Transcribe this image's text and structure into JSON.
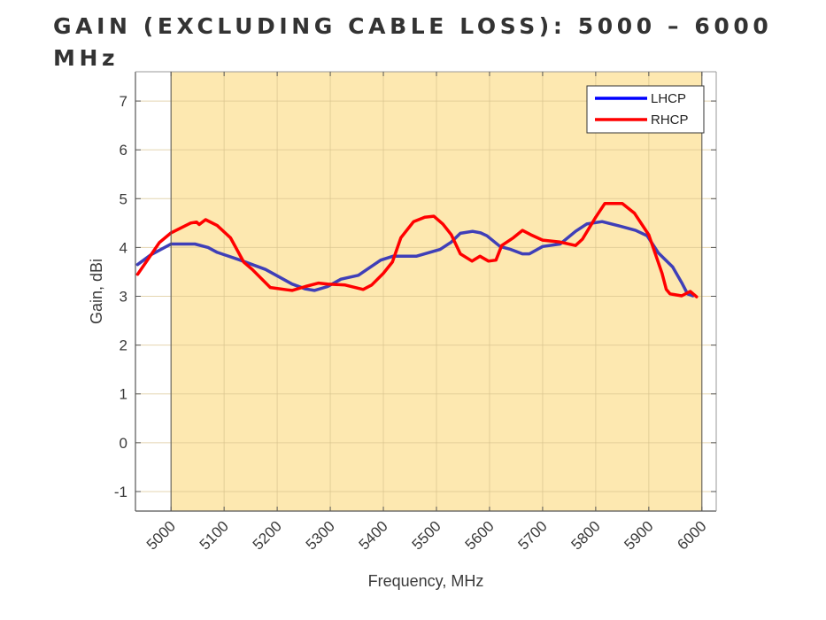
{
  "page": {
    "title": "GAIN (EXCLUDING CABLE LOSS): 5000 – 6000 MHz"
  },
  "chart_data": {
    "type": "line",
    "title": "GAIN (EXCLUDING CABLE LOSS): 5000 – 6000 MHz",
    "xlabel": "Frequency, MHz",
    "ylabel": "Gain, dBi",
    "xlim": [
      4933,
      6027
    ],
    "ylim": [
      -1.4,
      7.6
    ],
    "xticks": [
      5000,
      5100,
      5200,
      5300,
      5400,
      5500,
      5600,
      5700,
      5800,
      5900,
      6000
    ],
    "xtick_labels": [
      "5000",
      "5100",
      "5200",
      "5300",
      "5400",
      "5500",
      "5600",
      "5700",
      "5800",
      "5900",
      "6000"
    ],
    "yticks": [
      -1,
      0,
      1,
      2,
      3,
      4,
      5,
      6,
      7
    ],
    "ytick_labels": [
      "-1",
      "0",
      "1",
      "2",
      "3",
      "4",
      "5",
      "6",
      "7"
    ],
    "grid": true,
    "highlight_band": {
      "from": 5000,
      "to": 6000,
      "color": "#fde8b0"
    },
    "legend": {
      "position": "top-right",
      "entries": [
        "LHCP",
        "RHCP"
      ]
    },
    "series": [
      {
        "name": "LHCP",
        "color": "#3f3fb8",
        "legend_color": "#0000ff",
        "x": [
          4937,
          4962,
          5000,
          5045,
          5070,
          5087,
          5128,
          5178,
          5228,
          5253,
          5270,
          5295,
          5320,
          5353,
          5395,
          5418,
          5462,
          5507,
          5528,
          5545,
          5568,
          5583,
          5595,
          5620,
          5640,
          5662,
          5675,
          5700,
          5733,
          5762,
          5783,
          5812,
          5845,
          5875,
          5897,
          5918,
          5945,
          5962,
          5973,
          5983
        ],
        "y": [
          3.65,
          3.85,
          4.07,
          4.07,
          4.0,
          3.9,
          3.75,
          3.55,
          3.25,
          3.15,
          3.12,
          3.2,
          3.35,
          3.43,
          3.74,
          3.82,
          3.82,
          3.96,
          4.11,
          4.29,
          4.33,
          4.3,
          4.24,
          4.02,
          3.96,
          3.87,
          3.87,
          4.02,
          4.07,
          4.33,
          4.48,
          4.53,
          4.44,
          4.35,
          4.24,
          3.89,
          3.6,
          3.28,
          3.05,
          3.01
        ]
      },
      {
        "name": "RHCP",
        "color": "#ff0000",
        "legend_color": "#ff0000",
        "x": [
          4937,
          4953,
          4978,
          5000,
          5037,
          5048,
          5053,
          5065,
          5087,
          5112,
          5137,
          5153,
          5187,
          5220,
          5228,
          5253,
          5278,
          5295,
          5328,
          5362,
          5378,
          5400,
          5417,
          5433,
          5457,
          5478,
          5495,
          5512,
          5528,
          5545,
          5567,
          5582,
          5598,
          5612,
          5623,
          5645,
          5662,
          5678,
          5700,
          5733,
          5762,
          5775,
          5800,
          5817,
          5850,
          5873,
          5900,
          5925,
          5933,
          5940,
          5962,
          5978,
          5990
        ],
        "y": [
          3.45,
          3.7,
          4.1,
          4.3,
          4.5,
          4.52,
          4.47,
          4.57,
          4.45,
          4.2,
          3.7,
          3.55,
          3.18,
          3.13,
          3.12,
          3.2,
          3.27,
          3.25,
          3.23,
          3.14,
          3.23,
          3.47,
          3.7,
          4.2,
          4.53,
          4.62,
          4.64,
          4.48,
          4.26,
          3.87,
          3.72,
          3.82,
          3.72,
          3.74,
          4.04,
          4.2,
          4.35,
          4.26,
          4.15,
          4.11,
          4.04,
          4.17,
          4.62,
          4.9,
          4.9,
          4.7,
          4.26,
          3.47,
          3.14,
          3.05,
          3.01,
          3.1,
          2.99
        ]
      }
    ]
  }
}
